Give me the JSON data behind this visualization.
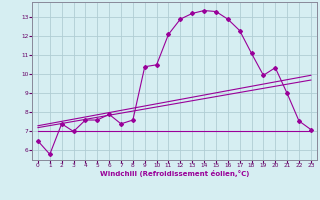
{
  "xlabel": "Windchill (Refroidissement éolien,°C)",
  "ylabel": "",
  "bg_color": "#d6eef2",
  "grid_color": "#b0cdd4",
  "line_color": "#990099",
  "xlim": [
    -0.5,
    23.5
  ],
  "ylim": [
    5.5,
    13.8
  ],
  "xticks": [
    0,
    1,
    2,
    3,
    4,
    5,
    6,
    7,
    8,
    9,
    10,
    11,
    12,
    13,
    14,
    15,
    16,
    17,
    18,
    19,
    20,
    21,
    22,
    23
  ],
  "yticks": [
    6,
    7,
    8,
    9,
    10,
    11,
    12,
    13
  ],
  "main_x": [
    0,
    1,
    2,
    3,
    4,
    5,
    6,
    7,
    8,
    9,
    10,
    11,
    12,
    13,
    14,
    15,
    16,
    17,
    18,
    19,
    20,
    21,
    22,
    23
  ],
  "main_y": [
    6.5,
    5.8,
    7.4,
    7.0,
    7.6,
    7.6,
    7.9,
    7.4,
    7.6,
    10.4,
    10.5,
    12.1,
    12.9,
    13.2,
    13.35,
    13.3,
    12.9,
    12.3,
    11.1,
    9.95,
    10.35,
    9.0,
    7.55,
    7.1
  ],
  "line2_x": [
    0,
    23
  ],
  "line2_y": [
    7.0,
    7.0
  ],
  "line3_x": [
    0,
    23
  ],
  "line3_y": [
    7.2,
    9.7
  ],
  "line4_x": [
    0,
    23
  ],
  "line4_y": [
    7.3,
    9.95
  ]
}
